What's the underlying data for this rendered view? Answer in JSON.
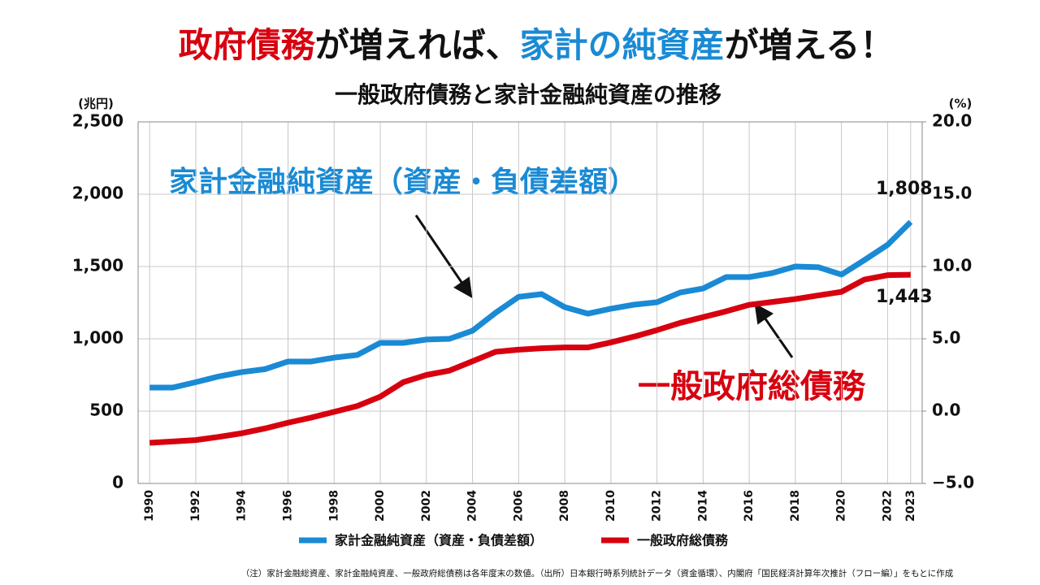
{
  "chart_data": {
    "type": "line",
    "title_parts": [
      {
        "text": "政府債務",
        "color": "#d7000f"
      },
      {
        "text": "が増えれば、",
        "color": "#111111"
      },
      {
        "text": "家計の純資産",
        "color": "#1a8ad4"
      },
      {
        "text": "が増える！",
        "color": "#111111"
      }
    ],
    "subtitle": "一般政府債務と家計金融純資産の推移",
    "y_label": "(兆円)",
    "y2_label": "(%)",
    "footnote": "（注）家計金融総資産、家計金融純資産、一般政府総債務は各年度末の数値。（出所）日本銀行時系列統計データ（資金循環）、内閣府「国民経済計算年次推計（フロー編）」をもとに作成",
    "x": [
      1990,
      1991,
      1992,
      1993,
      1994,
      1995,
      1996,
      1997,
      1998,
      1999,
      2000,
      2001,
      2002,
      2003,
      2004,
      2005,
      2006,
      2007,
      2008,
      2009,
      2010,
      2011,
      2012,
      2013,
      2014,
      2015,
      2016,
      2017,
      2018,
      2019,
      2020,
      2021,
      2022,
      2023
    ],
    "xlim": [
      1989.5,
      2023.5
    ],
    "xticks": [
      1990,
      1992,
      1994,
      1996,
      1998,
      2000,
      2002,
      2004,
      2006,
      2008,
      2010,
      2012,
      2014,
      2016,
      2018,
      2020,
      2022,
      2023
    ],
    "ylim": [
      0,
      2500
    ],
    "yticks": [
      0,
      500,
      {
        "value": 1000,
        "label": "1,000"
      },
      {
        "value": 1500,
        "label": "1,500"
      },
      {
        "value": 2000,
        "label": "2,000"
      },
      {
        "value": 2500,
        "label": "2,500"
      }
    ],
    "y2lim": [
      -5,
      20
    ],
    "y2ticks": [
      {
        "value": -5,
        "label": "−5.0"
      },
      {
        "value": 0,
        "label": "0.0"
      },
      {
        "value": 5,
        "label": "5.0"
      },
      {
        "value": 10,
        "label": "10.0"
      },
      {
        "value": 15,
        "label": "15.0"
      },
      {
        "value": 20,
        "label": "20.0"
      }
    ],
    "grid": true,
    "series": [
      {
        "name": "家計金融純資産（資産・負債差額）",
        "color": "#1a8ad4",
        "values": [
          663,
          663,
          700,
          740,
          770,
          790,
          843,
          843,
          870,
          888,
          972,
          972,
          995,
          1000,
          1056,
          1180,
          1290,
          1309,
          1219,
          1174,
          1208,
          1236,
          1253,
          1320,
          1348,
          1427,
          1427,
          1455,
          1500,
          1495,
          1444,
          1545,
          1650,
          1808
        ],
        "value_labels": [
          null,
          null,
          null,
          null,
          null,
          null,
          null,
          null,
          null,
          null,
          null,
          null,
          null,
          null,
          null,
          null,
          null,
          null,
          null,
          null,
          null,
          null,
          null,
          null,
          null,
          null,
          null,
          null,
          null,
          null,
          null,
          null,
          null,
          "1,808"
        ]
      },
      {
        "name": "一般政府総債務",
        "color": "#d7000f",
        "values": [
          281,
          290,
          300,
          322,
          347,
          380,
          420,
          455,
          495,
          535,
          600,
          700,
          750,
          780,
          845,
          910,
          925,
          935,
          940,
          940,
          975,
          1015,
          1060,
          1110,
          1150,
          1190,
          1235,
          1255,
          1275,
          1300,
          1325,
          1410,
          1440,
          1443
        ],
        "value_labels": [
          null,
          null,
          null,
          null,
          null,
          null,
          null,
          null,
          null,
          null,
          null,
          null,
          null,
          null,
          null,
          null,
          null,
          null,
          null,
          null,
          null,
          null,
          null,
          null,
          null,
          null,
          null,
          null,
          null,
          null,
          null,
          null,
          null,
          "1,443"
        ]
      }
    ]
  }
}
